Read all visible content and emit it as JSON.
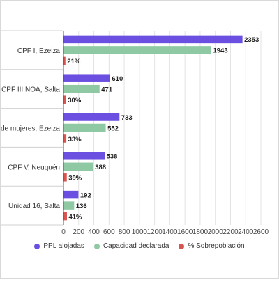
{
  "chart_data": {
    "type": "bar",
    "orientation": "horizontal",
    "categories": [
      "CPF I, Ezeiza",
      "CPF III NOA, Salta",
      "CPF IV de mujeres, Ezeiza",
      "CPF V, Neuquén",
      "Unidad 16, Salta"
    ],
    "series": [
      {
        "name": "PPL alojadas",
        "values": [
          2353,
          610,
          733,
          538,
          192
        ],
        "labels": [
          "2353",
          "610",
          "733",
          "538",
          "192"
        ],
        "color": "#6a4fe0"
      },
      {
        "name": "Capacidad declarada",
        "values": [
          1943,
          471,
          552,
          388,
          136
        ],
        "labels": [
          "1943",
          "471",
          "552",
          "388",
          "136"
        ],
        "color": "#8fc9a3"
      },
      {
        "name": "% Sobrepoblación",
        "values": [
          21,
          30,
          33,
          39,
          41
        ],
        "labels": [
          "21%",
          "30%",
          "33%",
          "39%",
          "41%"
        ],
        "color": "#d9534f"
      }
    ],
    "xlim": [
      0,
      2600
    ],
    "xticks": [
      "0",
      "200",
      "400",
      "600",
      "800",
      "1000",
      "1200",
      "1400",
      "1600",
      "1800",
      "2000",
      "2200",
      "2400",
      "2600"
    ],
    "grid": true,
    "legend_position": "bottom"
  }
}
